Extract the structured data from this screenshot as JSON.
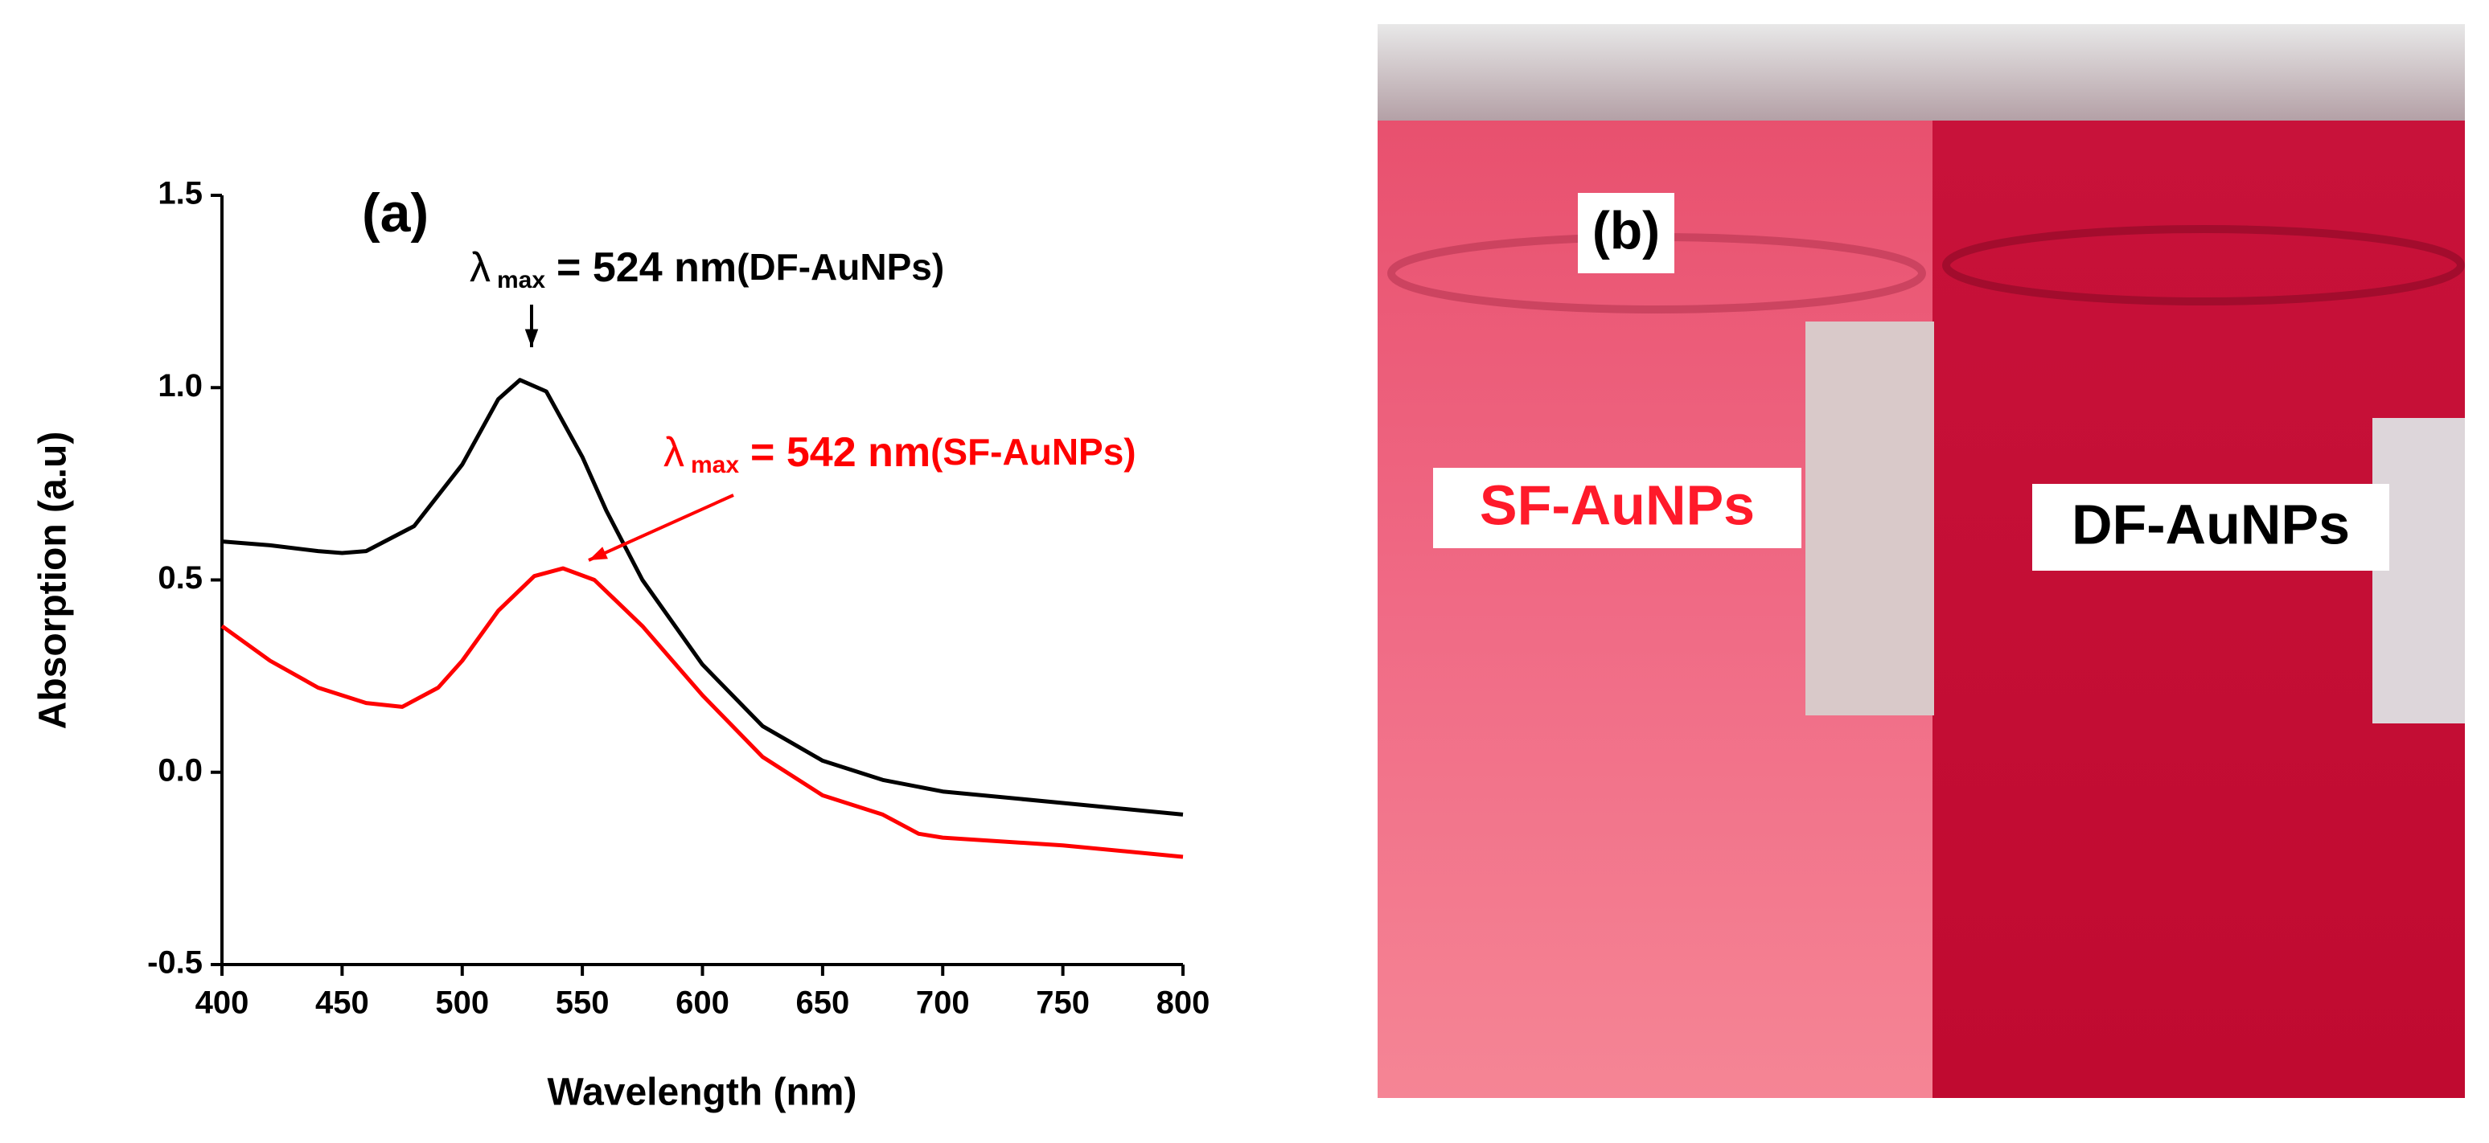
{
  "chart_data": {
    "type": "line",
    "panel_label": "(a)",
    "xlabel": "Wavelength (nm)",
    "ylabel": "Absorption (a.u)",
    "xlim": [
      400,
      800
    ],
    "xticks": [
      400,
      450,
      500,
      550,
      600,
      650,
      700,
      750,
      800
    ],
    "ylim": [
      -0.5,
      1.5
    ],
    "yticks": [
      -0.5,
      {
        "value": 0,
        "label": "0.0"
      },
      0.5,
      {
        "value": 1,
        "label": "1.0"
      },
      1.5
    ],
    "series": [
      {
        "name": "DF-AuNPs",
        "color": "#000000",
        "x": [
          400,
          420,
          440,
          450,
          460,
          480,
          500,
          515,
          524,
          535,
          550,
          560,
          575,
          600,
          625,
          650,
          675,
          700,
          750,
          800
        ],
        "values": [
          0.6,
          0.59,
          0.575,
          0.57,
          0.575,
          0.64,
          0.8,
          0.97,
          1.02,
          0.99,
          0.82,
          0.68,
          0.5,
          0.28,
          0.12,
          0.03,
          -0.02,
          -0.05,
          -0.08,
          -0.11
        ]
      },
      {
        "name": "SF-AuNPs",
        "color": "#ff0000",
        "x": [
          400,
          420,
          440,
          460,
          475,
          490,
          500,
          515,
          530,
          542,
          555,
          575,
          600,
          625,
          650,
          675,
          690,
          700,
          750,
          800
        ],
        "values": [
          0.38,
          0.29,
          0.22,
          0.18,
          0.17,
          0.22,
          0.29,
          0.42,
          0.51,
          0.53,
          0.5,
          0.38,
          0.2,
          0.04,
          -0.06,
          -0.11,
          -0.16,
          -0.17,
          -0.19,
          -0.22
        ]
      }
    ],
    "annotations": [
      {
        "symbol": "λ",
        "subscript": "max",
        "text": "= 524 nm",
        "note": "(DF-AuNPs)",
        "color": "#000000"
      },
      {
        "symbol": "λ",
        "subscript": "max",
        "text": "= 542 nm",
        "note": "(SF-AuNPs)",
        "color": "#ff0000"
      }
    ]
  },
  "photo": {
    "panel_label": "(b)",
    "sample_labels": [
      {
        "text": "SF-AuNPs",
        "color": "#ff1a2a"
      },
      {
        "text": "DF-AuNPs",
        "color": "#000000"
      }
    ]
  }
}
